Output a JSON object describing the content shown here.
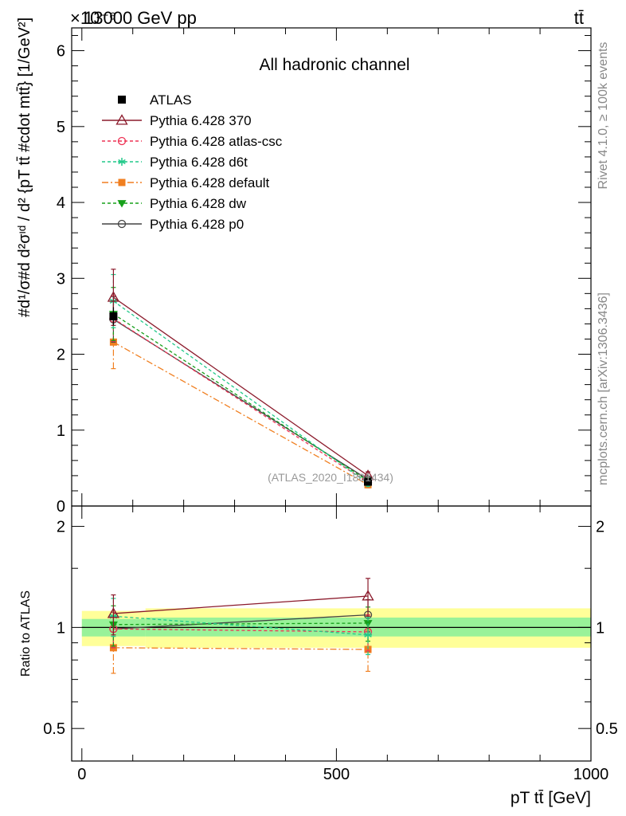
{
  "header": {
    "energy_label": "13000 GeV pp",
    "process_label": "tt̄",
    "exponent_label": "×10⁻⁶"
  },
  "side_labels": {
    "rivet": "Rivet 4.1.0, ≥ 100k events",
    "mcplots": "mcplots.cern.ch [arXiv:1306.3436]"
  },
  "chart_data": [
    {
      "type": "line",
      "panel": "main",
      "title": "All hadronic channel",
      "watermark": "(ATLAS_2020_I1801434)",
      "ylabel": "#d¹/σ#d d²σᶦᵈ / d² {pT tt̄ #cdot mtt̄} [1/GeV²]",
      "ylim": [
        0,
        6.3
      ],
      "xlim": [
        -20,
        1000
      ],
      "yticks": [
        0,
        1,
        2,
        3,
        4,
        5,
        6
      ],
      "ytick_labels": [
        "0",
        "1",
        "2",
        "3",
        "4",
        "5",
        "6"
      ],
      "y_scale_note": "×10⁻⁶",
      "x": [
        62,
        562
      ],
      "data": {
        "name": "ATLAS",
        "values": [
          2.5,
          0.32
        ],
        "err": [
          0.12,
          0.04
        ]
      },
      "series": [
        {
          "name": "Pythia 6.428 370",
          "values": [
            2.75,
            0.4
          ],
          "err": [
            0.37,
            0.05
          ],
          "color": "#8b1a2b",
          "dash": "",
          "marker": "triangle-open"
        },
        {
          "name": "Pythia 6.428 atlas-csc",
          "values": [
            2.47,
            0.31
          ],
          "err": [
            0.3,
            0.04
          ],
          "color": "#ee3355",
          "dash": "4,3",
          "marker": "circle-open"
        },
        {
          "name": "Pythia 6.428 d6t",
          "values": [
            2.7,
            0.3
          ],
          "err": [
            0.35,
            0.04
          ],
          "color": "#22c98a",
          "dash": "4,3",
          "marker": "star"
        },
        {
          "name": "Pythia 6.428 default",
          "values": [
            2.16,
            0.28
          ],
          "err": [
            0.35,
            0.04
          ],
          "color": "#f07f20",
          "dash": "8,3,2,3",
          "marker": "square"
        },
        {
          "name": "Pythia 6.428 dw",
          "values": [
            2.53,
            0.33
          ],
          "err": [
            0.35,
            0.04
          ],
          "color": "#16a01a",
          "dash": "4,3",
          "marker": "triangle-down"
        },
        {
          "name": "Pythia 6.428 p0",
          "values": [
            2.46,
            0.35
          ],
          "err": [
            0.3,
            0.04
          ],
          "color": "#444444",
          "dash": "",
          "marker": "circle-open"
        }
      ]
    },
    {
      "type": "line",
      "panel": "ratio",
      "ylabel": "Ratio to ATLAS",
      "xlabel": "pT tt̄ [GeV]",
      "ylim": [
        0.4,
        2.3
      ],
      "yticks": [
        0.5,
        1,
        2
      ],
      "ytick_labels": [
        "0.5",
        "1",
        "2"
      ],
      "xlim": [
        -20,
        1000
      ],
      "xticks": [
        0,
        500,
        1000
      ],
      "xtick_labels": [
        "0",
        "500",
        "1000"
      ],
      "bands": [
        {
          "x_from": 0,
          "x_to": 125,
          "inner": [
            0.94,
            1.06
          ],
          "outer": [
            0.88,
            1.12
          ]
        },
        {
          "x_from": 125,
          "x_to": 1000,
          "inner": [
            0.94,
            1.07
          ],
          "outer": [
            0.87,
            1.14
          ]
        }
      ],
      "x": [
        62,
        562
      ],
      "series": [
        {
          "name": "Pythia 6.428 370",
          "values": [
            1.1,
            1.24
          ],
          "err": [
            0.15,
            0.16
          ]
        },
        {
          "name": "Pythia 6.428 atlas-csc",
          "values": [
            0.99,
            0.97
          ],
          "err": [
            0.12,
            0.12
          ]
        },
        {
          "name": "Pythia 6.428 d6t",
          "values": [
            1.08,
            0.95
          ],
          "err": [
            0.14,
            0.12
          ]
        },
        {
          "name": "Pythia 6.428 default",
          "values": [
            0.87,
            0.86
          ],
          "err": [
            0.14,
            0.12
          ]
        },
        {
          "name": "Pythia 6.428 dw",
          "values": [
            1.02,
            1.03
          ],
          "err": [
            0.14,
            0.12
          ]
        },
        {
          "name": "Pythia 6.428 p0",
          "values": [
            0.99,
            1.09
          ],
          "err": [
            0.12,
            0.12
          ]
        }
      ]
    }
  ]
}
